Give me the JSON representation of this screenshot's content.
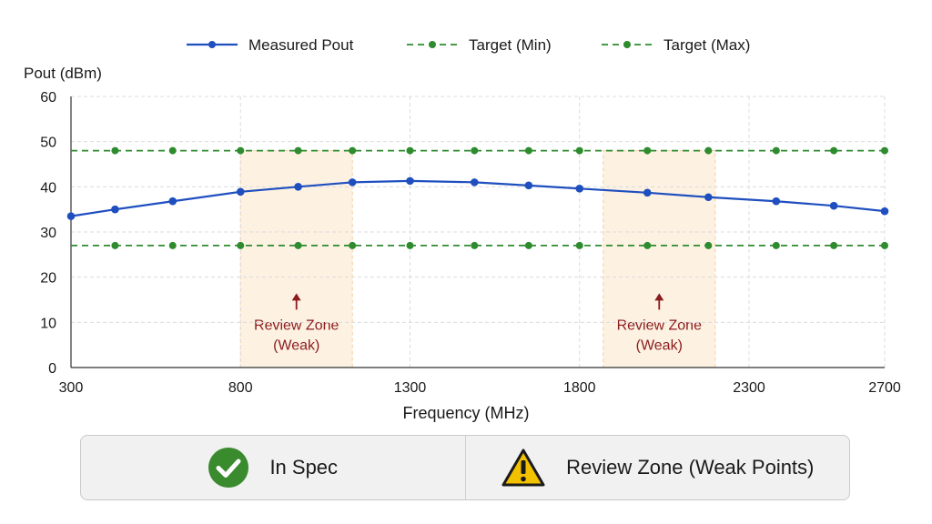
{
  "chart_data": {
    "type": "line",
    "xlabel": "Frequency (MHz)",
    "ylabel": "Pout (dBm)",
    "xlim": [
      300,
      2700
    ],
    "ylim": [
      0,
      60
    ],
    "xticks": [
      300,
      800,
      1300,
      1800,
      2300,
      2700
    ],
    "yticks": [
      0,
      10,
      20,
      30,
      40,
      50,
      60
    ],
    "grid": true,
    "legend_position": "top",
    "series": [
      {
        "name": "Measured Pout",
        "color": "#1f4fbf",
        "style": "solid",
        "x": [
          300,
          430,
          600,
          800,
          970,
          1130,
          1300,
          1490,
          1650,
          1800,
          2000,
          2180,
          2380,
          2550,
          2700
        ],
        "y": [
          33.5,
          35.0,
          36.8,
          38.9,
          40.0,
          41.0,
          41.3,
          41.0,
          40.3,
          39.6,
          38.7,
          37.7,
          36.8,
          35.8,
          34.6
        ]
      },
      {
        "name": "Target (Min)",
        "color": "#2e8b2e",
        "style": "dashed",
        "x": [
          430,
          600,
          800,
          970,
          1130,
          1300,
          1490,
          1650,
          1800,
          2000,
          2180,
          2380,
          2550,
          2700
        ],
        "y": [
          27,
          27,
          27,
          27,
          27,
          27,
          27,
          27,
          27,
          27,
          27,
          27,
          27,
          27
        ]
      },
      {
        "name": "Target (Max)",
        "color": "#2e8b2e",
        "style": "dashed",
        "x": [
          430,
          600,
          800,
          970,
          1130,
          1300,
          1490,
          1650,
          1800,
          2000,
          2180,
          2380,
          2550,
          2700
        ],
        "y": [
          48,
          48,
          48,
          48,
          48,
          48,
          48,
          48,
          48,
          48,
          48,
          48,
          48,
          48
        ]
      }
    ],
    "review_zones": [
      {
        "x_start": 800,
        "x_end": 1130,
        "label_line1": "Review Zone",
        "label_line2": "(Weak)",
        "label_x": 965,
        "label_y": 12
      },
      {
        "x_start": 1870,
        "x_end": 2200,
        "label_line1": "Review Zone",
        "label_line2": "(Weak)",
        "label_x": 2035,
        "label_y": 12
      }
    ],
    "zone_fill_color": "#fdf1e2",
    "zone_text_color": "#8b1c1c"
  },
  "status_panel": {
    "in_spec": {
      "label": "In Spec",
      "icon": "check-circle-icon",
      "color": "#3a8a2e"
    },
    "review": {
      "label": "Review Zone (Weak Points)",
      "icon": "warning-triangle-icon",
      "color": "#f2c200"
    }
  }
}
